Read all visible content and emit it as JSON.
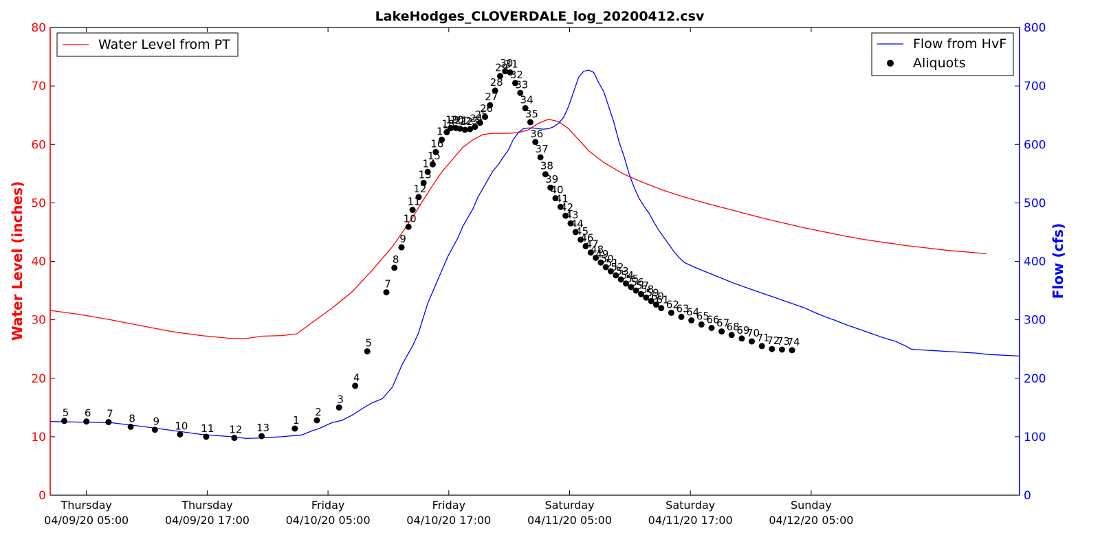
{
  "chart_data": {
    "type": "line",
    "title": "LakeHodges_CLOVERDALE_log_20200412.csv",
    "y_left_label": "Water Level (inches)",
    "y_right_label": "Flow (cfs)",
    "y_left_range": [
      0,
      80
    ],
    "y_right_range": [
      0,
      800
    ],
    "y_left_ticks": [
      0,
      10,
      20,
      30,
      40,
      50,
      60,
      70,
      80
    ],
    "y_right_ticks": [
      0,
      100,
      200,
      300,
      400,
      500,
      600,
      700,
      800
    ],
    "x_range_hours": [
      0,
      96.3
    ],
    "x_ticks": [
      {
        "hour": 3.6,
        "day": "Thursday",
        "date": "04/09/20 05:00"
      },
      {
        "hour": 15.6,
        "day": "Thursday",
        "date": "04/09/20 17:00"
      },
      {
        "hour": 27.6,
        "day": "Friday",
        "date": "04/10/20 05:00"
      },
      {
        "hour": 39.6,
        "day": "Friday",
        "date": "04/10/20 17:00"
      },
      {
        "hour": 51.6,
        "day": "Saturday",
        "date": "04/11/20 05:00"
      },
      {
        "hour": 63.6,
        "day": "Saturday",
        "date": "04/11/20 17:00"
      },
      {
        "hour": 75.6,
        "day": "Sunday",
        "date": "04/12/20 05:00"
      }
    ],
    "colors": {
      "water_level": "#ff0000",
      "flow": "#0000ff",
      "aliquots": "#000000"
    },
    "legend_left": {
      "position": "top-left",
      "entries": [
        {
          "label": "Water Level from PT"
        }
      ]
    },
    "legend_right": {
      "position": "top-right",
      "entries": [
        {
          "label": "Flow from HvF"
        },
        {
          "label": "Aliquots"
        }
      ]
    },
    "series": [
      {
        "name": "Water Level from PT",
        "axis": "left",
        "points": [
          [
            0,
            31.6
          ],
          [
            3,
            30.9
          ],
          [
            6,
            30.0
          ],
          [
            9,
            29.0
          ],
          [
            12,
            28.0
          ],
          [
            15,
            27.3
          ],
          [
            18,
            26.8
          ],
          [
            19.5,
            26.8
          ],
          [
            21,
            27.2
          ],
          [
            23,
            27.3
          ],
          [
            24.5,
            27.6
          ],
          [
            26,
            29.5
          ],
          [
            28,
            32.0
          ],
          [
            30,
            34.8
          ],
          [
            32,
            38.5
          ],
          [
            34,
            42.5
          ],
          [
            36,
            47.5
          ],
          [
            37,
            50.3
          ],
          [
            38,
            53.0
          ],
          [
            39,
            55.5
          ],
          [
            40,
            57.5
          ],
          [
            41,
            59.5
          ],
          [
            42,
            60.8
          ],
          [
            43,
            61.7
          ],
          [
            44,
            61.9
          ],
          [
            45.5,
            61.9
          ],
          [
            46.5,
            62.0
          ],
          [
            47.5,
            62.5
          ],
          [
            48.5,
            63.6
          ],
          [
            49.5,
            64.3
          ],
          [
            50.5,
            63.9
          ],
          [
            51.5,
            62.7
          ],
          [
            52.5,
            60.8
          ],
          [
            53.5,
            58.9
          ],
          [
            55,
            56.9
          ],
          [
            57,
            54.9
          ],
          [
            59,
            53.4
          ],
          [
            61,
            52.1
          ],
          [
            63,
            51.0
          ],
          [
            65,
            50.0
          ],
          [
            67,
            49.1
          ],
          [
            69,
            48.2
          ],
          [
            71,
            47.3
          ],
          [
            73,
            46.5
          ],
          [
            75,
            45.7
          ],
          [
            77,
            45.0
          ],
          [
            79,
            44.3
          ],
          [
            81,
            43.7
          ],
          [
            83,
            43.2
          ],
          [
            85,
            42.7
          ],
          [
            87,
            42.3
          ],
          [
            89,
            41.9
          ],
          [
            91,
            41.6
          ],
          [
            93,
            41.3
          ]
        ]
      },
      {
        "name": "Flow from HvF",
        "axis": "right",
        "points": [
          [
            0,
            126
          ],
          [
            3,
            125
          ],
          [
            6,
            124
          ],
          [
            9,
            118
          ],
          [
            12,
            111
          ],
          [
            15,
            104
          ],
          [
            18,
            100
          ],
          [
            19.5,
            97
          ],
          [
            21,
            98
          ],
          [
            23,
            100
          ],
          [
            25,
            103
          ],
          [
            26,
            110
          ],
          [
            26.7,
            114
          ],
          [
            28,
            124
          ],
          [
            29,
            128
          ],
          [
            30,
            137
          ],
          [
            31,
            148
          ],
          [
            32,
            158
          ],
          [
            33,
            165
          ],
          [
            34,
            185
          ],
          [
            35,
            225
          ],
          [
            36,
            255
          ],
          [
            36.6,
            278
          ],
          [
            37,
            300
          ],
          [
            37.5,
            328
          ],
          [
            38,
            348
          ],
          [
            38.5,
            368
          ],
          [
            39,
            388
          ],
          [
            39.5,
            408
          ],
          [
            40,
            424
          ],
          [
            40.5,
            440
          ],
          [
            41,
            460
          ],
          [
            41.5,
            475
          ],
          [
            42,
            490
          ],
          [
            42.5,
            510
          ],
          [
            43,
            525
          ],
          [
            43.5,
            540
          ],
          [
            44,
            555
          ],
          [
            44.5,
            565
          ],
          [
            45,
            578
          ],
          [
            45.5,
            590
          ],
          [
            46,
            608
          ],
          [
            46.5,
            620
          ],
          [
            47,
            627
          ],
          [
            47.5,
            628
          ],
          [
            48,
            628
          ],
          [
            48.5,
            627
          ],
          [
            49,
            626
          ],
          [
            49.5,
            627
          ],
          [
            50,
            630
          ],
          [
            50.5,
            636
          ],
          [
            51,
            646
          ],
          [
            51.5,
            665
          ],
          [
            52,
            690
          ],
          [
            52.5,
            715
          ],
          [
            53,
            725
          ],
          [
            53.5,
            727
          ],
          [
            54,
            723
          ],
          [
            54.5,
            705
          ],
          [
            55,
            690
          ],
          [
            55.5,
            664
          ],
          [
            56,
            638
          ],
          [
            56.5,
            605
          ],
          [
            57,
            580
          ],
          [
            57.5,
            550
          ],
          [
            58,
            527
          ],
          [
            58.5,
            508
          ],
          [
            59,
            494
          ],
          [
            59.5,
            482
          ],
          [
            60,
            466
          ],
          [
            60.5,
            452
          ],
          [
            61,
            440
          ],
          [
            61.5,
            428
          ],
          [
            62,
            416
          ],
          [
            62.5,
            406
          ],
          [
            63,
            398
          ],
          [
            64,
            390
          ],
          [
            65,
            383
          ],
          [
            66,
            376
          ],
          [
            67,
            369
          ],
          [
            68,
            362
          ],
          [
            69,
            356
          ],
          [
            70,
            350
          ],
          [
            71,
            344
          ],
          [
            72,
            338
          ],
          [
            73,
            332
          ],
          [
            74,
            326
          ],
          [
            75,
            320
          ],
          [
            76,
            312
          ],
          [
            77,
            305
          ],
          [
            78,
            299
          ],
          [
            79,
            292
          ],
          [
            80,
            286
          ],
          [
            81,
            280
          ],
          [
            82,
            274
          ],
          [
            83,
            268
          ],
          [
            84,
            263
          ],
          [
            85,
            255
          ],
          [
            85.5,
            250
          ],
          [
            86,
            249
          ],
          [
            87,
            248
          ],
          [
            88,
            247
          ],
          [
            89,
            246
          ],
          [
            90,
            245
          ],
          [
            91,
            244
          ],
          [
            92,
            243
          ],
          [
            93,
            241
          ],
          [
            94,
            240
          ],
          [
            96.3,
            238
          ]
        ]
      }
    ],
    "aliquots": [
      {
        "label": "5",
        "hour": 1.4,
        "flow": 127
      },
      {
        "label": "6",
        "hour": 3.6,
        "flow": 126
      },
      {
        "label": "7",
        "hour": 5.8,
        "flow": 125
      },
      {
        "label": "8",
        "hour": 8.0,
        "flow": 117
      },
      {
        "label": "9",
        "hour": 10.4,
        "flow": 112
      },
      {
        "label": "10",
        "hour": 12.9,
        "flow": 104
      },
      {
        "label": "11",
        "hour": 15.5,
        "flow": 100
      },
      {
        "label": "12",
        "hour": 18.3,
        "flow": 98
      },
      {
        "label": "13",
        "hour": 21.0,
        "flow": 101
      },
      {
        "label": "1",
        "hour": 24.3,
        "flow": 114
      },
      {
        "label": "2",
        "hour": 26.5,
        "flow": 128
      },
      {
        "label": "3",
        "hour": 28.7,
        "flow": 150
      },
      {
        "label": "4",
        "hour": 30.3,
        "flow": 187
      },
      {
        "label": "5",
        "hour": 31.5,
        "flow": 246
      },
      {
        "label": "7",
        "hour": 33.4,
        "flow": 347
      },
      {
        "label": "8",
        "hour": 34.2,
        "flow": 389
      },
      {
        "label": "9",
        "hour": 34.9,
        "flow": 424
      },
      {
        "label": "10",
        "hour": 35.6,
        "flow": 459
      },
      {
        "label": "11",
        "hour": 36.0,
        "flow": 488
      },
      {
        "label": "12",
        "hour": 36.6,
        "flow": 510
      },
      {
        "label": "13",
        "hour": 37.1,
        "flow": 534
      },
      {
        "label": "14",
        "hour": 37.5,
        "flow": 553
      },
      {
        "label": "15",
        "hour": 38.0,
        "flow": 566
      },
      {
        "label": "16",
        "hour": 38.3,
        "flow": 587
      },
      {
        "label": "17",
        "hour": 38.9,
        "flow": 608
      },
      {
        "label": "18",
        "hour": 39.4,
        "flow": 621
      },
      {
        "label": "19",
        "hour": 39.8,
        "flow": 628
      },
      {
        "label": "20",
        "hour": 40.3,
        "flow": 628
      },
      {
        "label": "21",
        "hour": 40.7,
        "flow": 627
      },
      {
        "label": "22",
        "hour": 41.2,
        "flow": 625
      },
      {
        "label": "23",
        "hour": 41.7,
        "flow": 626
      },
      {
        "label": "24",
        "hour": 42.2,
        "flow": 630
      },
      {
        "label": "25",
        "hour": 42.7,
        "flow": 637
      },
      {
        "label": "26",
        "hour": 43.2,
        "flow": 647
      },
      {
        "label": "27",
        "hour": 43.7,
        "flow": 667
      },
      {
        "label": "28",
        "hour": 44.2,
        "flow": 692
      },
      {
        "label": "29",
        "hour": 44.7,
        "flow": 717
      },
      {
        "label": "30",
        "hour": 45.2,
        "flow": 725
      },
      {
        "label": "31",
        "hour": 45.7,
        "flow": 723
      },
      {
        "label": "32",
        "hour": 46.2,
        "flow": 705
      },
      {
        "label": "33",
        "hour": 46.7,
        "flow": 688
      },
      {
        "label": "34",
        "hour": 47.2,
        "flow": 662
      },
      {
        "label": "35",
        "hour": 47.7,
        "flow": 638
      },
      {
        "label": "36",
        "hour": 48.2,
        "flow": 604
      },
      {
        "label": "37",
        "hour": 48.7,
        "flow": 578
      },
      {
        "label": "38",
        "hour": 49.2,
        "flow": 549
      },
      {
        "label": "39",
        "hour": 49.7,
        "flow": 526
      },
      {
        "label": "40",
        "hour": 50.2,
        "flow": 508
      },
      {
        "label": "41",
        "hour": 50.7,
        "flow": 493
      },
      {
        "label": "42",
        "hour": 51.2,
        "flow": 478
      },
      {
        "label": "43",
        "hour": 51.7,
        "flow": 465
      },
      {
        "label": "44",
        "hour": 52.2,
        "flow": 450
      },
      {
        "label": "45",
        "hour": 52.7,
        "flow": 437
      },
      {
        "label": "46",
        "hour": 53.2,
        "flow": 426
      },
      {
        "label": "47",
        "hour": 53.7,
        "flow": 415
      },
      {
        "label": "48",
        "hour": 54.2,
        "flow": 406
      },
      {
        "label": "49",
        "hour": 54.7,
        "flow": 398
      },
      {
        "label": "50",
        "hour": 55.2,
        "flow": 390
      },
      {
        "label": "51",
        "hour": 55.7,
        "flow": 383
      },
      {
        "label": "52",
        "hour": 56.2,
        "flow": 376
      },
      {
        "label": "53",
        "hour": 56.7,
        "flow": 369
      },
      {
        "label": "54",
        "hour": 57.2,
        "flow": 362
      },
      {
        "label": "55",
        "hour": 57.7,
        "flow": 356
      },
      {
        "label": "56",
        "hour": 58.2,
        "flow": 350
      },
      {
        "label": "57",
        "hour": 58.7,
        "flow": 344
      },
      {
        "label": "58",
        "hour": 59.2,
        "flow": 338
      },
      {
        "label": "59",
        "hour": 59.7,
        "flow": 332
      },
      {
        "label": "60",
        "hour": 60.2,
        "flow": 326
      },
      {
        "label": "61",
        "hour": 60.7,
        "flow": 320
      },
      {
        "label": "62",
        "hour": 61.7,
        "flow": 312
      },
      {
        "label": "63",
        "hour": 62.7,
        "flow": 305
      },
      {
        "label": "64",
        "hour": 63.7,
        "flow": 299
      },
      {
        "label": "65",
        "hour": 64.7,
        "flow": 292
      },
      {
        "label": "66",
        "hour": 65.7,
        "flow": 286
      },
      {
        "label": "67",
        "hour": 66.7,
        "flow": 280
      },
      {
        "label": "68",
        "hour": 67.7,
        "flow": 274
      },
      {
        "label": "69",
        "hour": 68.7,
        "flow": 268
      },
      {
        "label": "70",
        "hour": 69.7,
        "flow": 263
      },
      {
        "label": "71",
        "hour": 70.7,
        "flow": 255
      },
      {
        "label": "72",
        "hour": 71.7,
        "flow": 250
      },
      {
        "label": "73",
        "hour": 72.7,
        "flow": 249
      },
      {
        "label": "74",
        "hour": 73.7,
        "flow": 248
      }
    ]
  }
}
